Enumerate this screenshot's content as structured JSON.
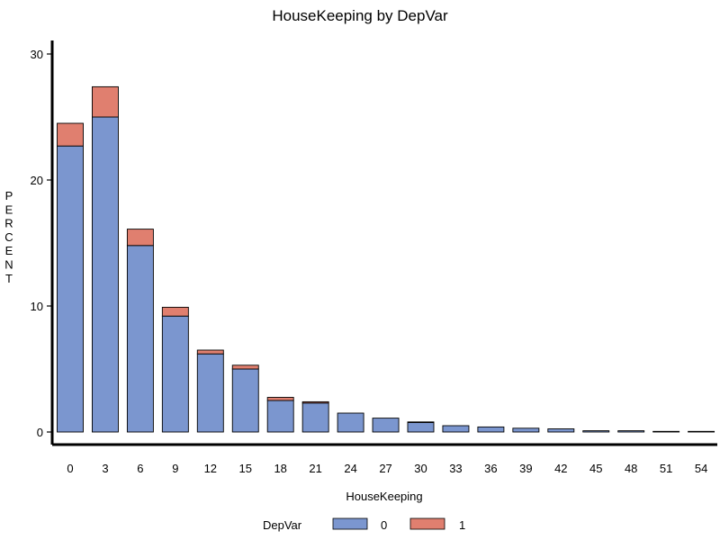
{
  "chart_data": {
    "type": "bar",
    "stacked": true,
    "title": "HouseKeeping by DepVar",
    "xlabel": "HouseKeeping",
    "ylabel": "PERCENT",
    "categories": [
      "0",
      "3",
      "6",
      "9",
      "12",
      "15",
      "18",
      "21",
      "24",
      "27",
      "30",
      "33",
      "36",
      "39",
      "42",
      "45",
      "48",
      "51",
      "54"
    ],
    "series": [
      {
        "name": "0",
        "color": "#7b96cf",
        "values": [
          22.7,
          25.0,
          14.8,
          9.2,
          6.2,
          5.0,
          2.5,
          2.3,
          1.5,
          1.1,
          0.75,
          0.5,
          0.4,
          0.3,
          0.25,
          0.1,
          0.1,
          0.05,
          0.05
        ]
      },
      {
        "name": "1",
        "color": "#e07f6f",
        "values": [
          1.8,
          2.4,
          1.3,
          0.7,
          0.3,
          0.3,
          0.25,
          0.1,
          0.0,
          0.0,
          0.05,
          0.0,
          0.0,
          0.0,
          0.0,
          0.0,
          0.0,
          0.0,
          0.0
        ]
      }
    ],
    "ylim": [
      0,
      30
    ],
    "yticks": [
      0,
      10,
      20,
      30
    ],
    "grid": false,
    "legend": {
      "title": "DepVar",
      "position": "bottom"
    }
  }
}
